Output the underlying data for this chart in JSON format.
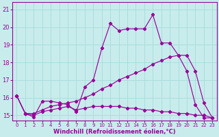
{
  "xlabel": "Windchill (Refroidissement éolien,°C)",
  "ylabel": "",
  "bg_color": "#c8ecec",
  "line_color": "#990099",
  "grid_color": "#aadddd",
  "axis_color": "#990099",
  "tick_color": "#990099",
  "label_color": "#990099",
  "xlim": [
    -0.5,
    23.5
  ],
  "ylim": [
    14.7,
    21.4
  ],
  "yticks": [
    15,
    16,
    17,
    18,
    19,
    20,
    21
  ],
  "xticks": [
    0,
    1,
    2,
    3,
    4,
    5,
    6,
    7,
    8,
    9,
    10,
    11,
    12,
    13,
    14,
    15,
    16,
    17,
    18,
    19,
    20,
    21,
    22,
    23
  ],
  "line1_x": [
    0,
    1,
    2,
    3,
    4,
    5,
    6,
    7,
    8,
    9,
    10,
    11,
    12,
    13,
    14,
    15,
    16,
    17,
    18,
    19,
    20,
    21,
    22,
    23
  ],
  "line1_y": [
    16.1,
    15.1,
    14.9,
    15.8,
    15.8,
    15.7,
    15.6,
    15.2,
    16.6,
    17.0,
    18.8,
    20.2,
    19.8,
    19.9,
    19.9,
    19.9,
    20.7,
    19.1,
    19.1,
    18.4,
    17.5,
    15.6,
    14.85,
    14.85
  ],
  "line2_x": [
    0,
    1,
    2,
    3,
    4,
    5,
    6,
    7,
    8,
    9,
    10,
    11,
    12,
    13,
    14,
    15,
    16,
    17,
    18,
    19,
    20,
    21,
    22,
    23
  ],
  "line2_y": [
    16.1,
    15.1,
    15.1,
    15.3,
    15.5,
    15.6,
    15.7,
    15.8,
    16.0,
    16.2,
    16.5,
    16.7,
    17.0,
    17.2,
    17.4,
    17.6,
    17.9,
    18.1,
    18.3,
    18.4,
    18.4,
    17.5,
    15.7,
    14.85
  ],
  "line3_x": [
    0,
    1,
    2,
    3,
    4,
    5,
    6,
    7,
    8,
    9,
    10,
    11,
    12,
    13,
    14,
    15,
    16,
    17,
    18,
    19,
    20,
    21,
    22,
    23
  ],
  "line3_y": [
    16.1,
    15.1,
    15.0,
    15.2,
    15.3,
    15.4,
    15.5,
    15.3,
    15.4,
    15.5,
    15.5,
    15.5,
    15.5,
    15.4,
    15.4,
    15.3,
    15.3,
    15.2,
    15.2,
    15.1,
    15.1,
    15.0,
    15.0,
    14.85
  ]
}
